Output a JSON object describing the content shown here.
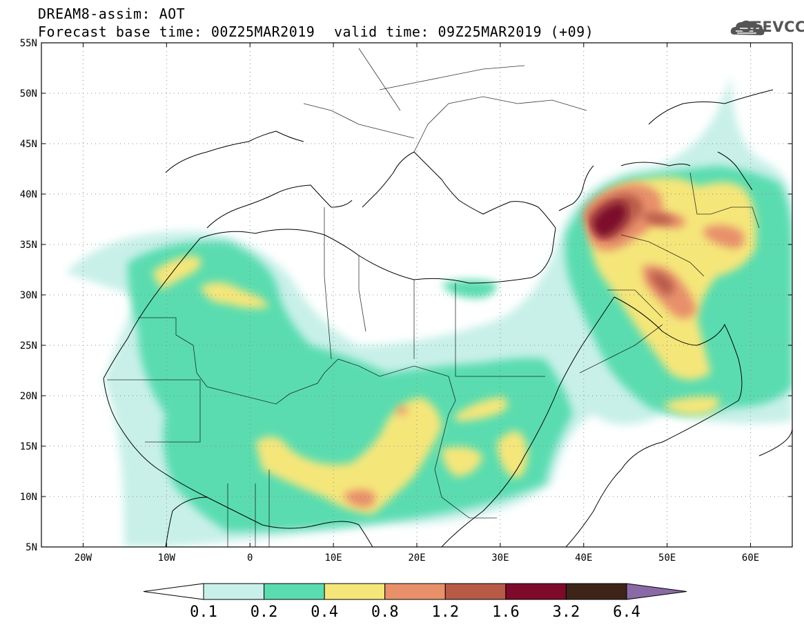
{
  "header": {
    "line1": "DREAM8-assim: AOT",
    "line2": "Forecast base time: 00Z25MAR2019",
    "line3": "valid time: 09Z25MAR2019 (+09)"
  },
  "logo": {
    "text": "SEEVCCC",
    "icon": "cloud-icon"
  },
  "map": {
    "lon_range": [
      -25,
      65
    ],
    "lat_range": [
      5,
      55
    ],
    "lat_ticks": [
      {
        "value": 5,
        "label": "5N"
      },
      {
        "value": 10,
        "label": "10N"
      },
      {
        "value": 15,
        "label": "15N"
      },
      {
        "value": 20,
        "label": "20N"
      },
      {
        "value": 25,
        "label": "25N"
      },
      {
        "value": 30,
        "label": "30N"
      },
      {
        "value": 35,
        "label": "35N"
      },
      {
        "value": 40,
        "label": "40N"
      },
      {
        "value": 45,
        "label": "45N"
      },
      {
        "value": 50,
        "label": "50N"
      },
      {
        "value": 55,
        "label": "55N"
      }
    ],
    "lon_ticks": [
      {
        "value": -20,
        "label": "20W"
      },
      {
        "value": -10,
        "label": "10W"
      },
      {
        "value": 0,
        "label": "0"
      },
      {
        "value": 10,
        "label": "10E"
      },
      {
        "value": 20,
        "label": "20E"
      },
      {
        "value": 30,
        "label": "30E"
      },
      {
        "value": 40,
        "label": "40E"
      },
      {
        "value": 50,
        "label": "50E"
      },
      {
        "value": 60,
        "label": "60E"
      }
    ],
    "grid": "dotted"
  },
  "colorbar": {
    "labels": [
      "0.1",
      "0.2",
      "0.4",
      "0.8",
      "1.2",
      "1.6",
      "3.2",
      "6.4"
    ],
    "colors": [
      "#ffffff",
      "#c8f0e8",
      "#5adcb0",
      "#f5e67a",
      "#e8906a",
      "#b85a48",
      "#7d0a2a",
      "#3e2418",
      "#8a6aa6"
    ]
  }
}
